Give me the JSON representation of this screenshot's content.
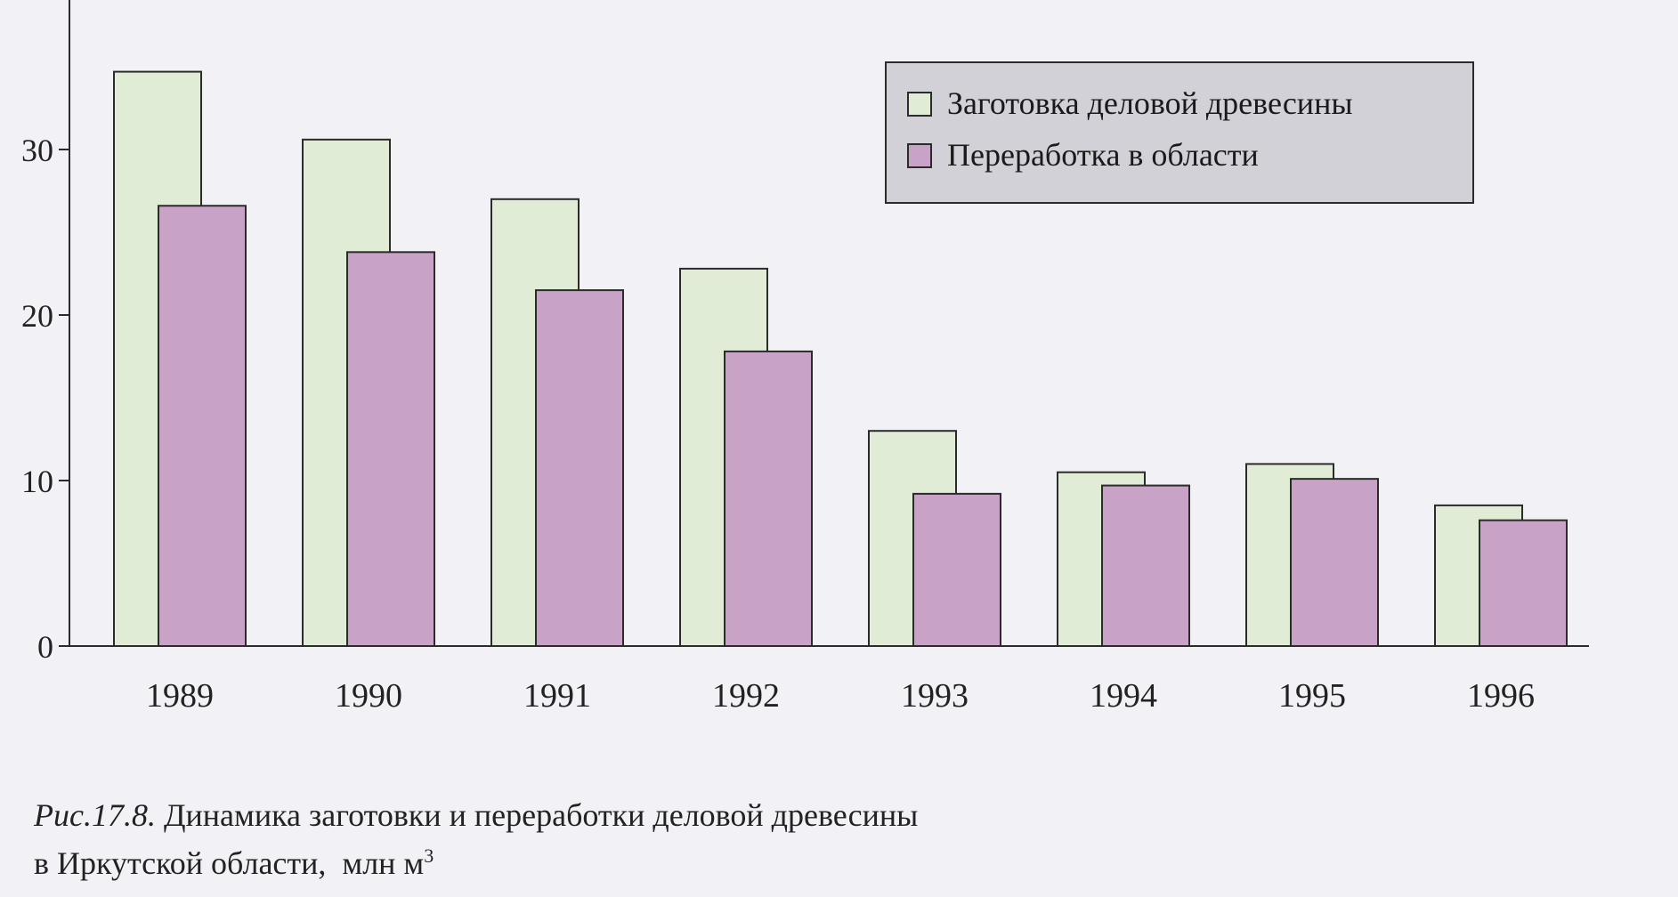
{
  "chart_data": {
    "type": "bar",
    "categories": [
      "1989",
      "1990",
      "1991",
      "1992",
      "1993",
      "1994",
      "1995",
      "1996"
    ],
    "series": [
      {
        "name": "Заготовка деловой древесины",
        "values": [
          34.7,
          30.6,
          27.0,
          22.8,
          13.0,
          10.5,
          11.0,
          8.5
        ],
        "color": "#e1ecd7"
      },
      {
        "name": "Переработка в области",
        "values": [
          26.6,
          23.8,
          21.5,
          17.8,
          9.2,
          9.7,
          10.1,
          7.6
        ],
        "color": "#c9a3c7"
      }
    ],
    "yticks": [
      "0",
      "10",
      "20",
      "30"
    ],
    "ylim": [
      0,
      38
    ],
    "grid": false,
    "legend_position": "top-right"
  },
  "caption": {
    "figure_number": "Рис.17.8.",
    "line1": "Динамика заготовки и переработки деловой древесины",
    "line2": "в Иркутской области,",
    "unit": "млн м",
    "unit_sup": "3"
  }
}
